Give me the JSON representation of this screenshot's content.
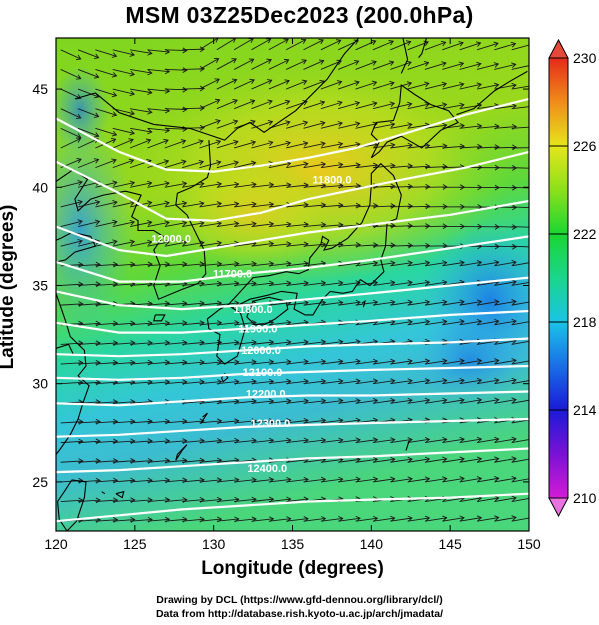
{
  "title": "MSM 03Z25Dec2023 (200.0hPa)",
  "xlabel": "Longitude (degrees)",
  "ylabel": "Latitude  (degrees)",
  "credits": {
    "line1": "Drawing by DCL (https://www.gfd-dennou.org/library/dcl/)",
    "line2": "Data from http://database.rish.kyoto-u.ac.jp/arch/jmadata/"
  },
  "map": {
    "lon_range": [
      120,
      150
    ],
    "lat_range": [
      22.5,
      47.6
    ],
    "x_ticks": [
      "120",
      "125",
      "130",
      "135",
      "140",
      "145",
      "150"
    ],
    "y_ticks": [
      "25",
      "30",
      "35",
      "40",
      "45"
    ],
    "colorbar": {
      "range": [
        210,
        230
      ],
      "labels": [
        "230",
        "226",
        "222",
        "218",
        "214",
        "210"
      ]
    },
    "contour_labels": [
      {
        "text": "11800.0",
        "lon": 137.5,
        "lat": 40.2
      },
      {
        "text": "12000.0",
        "lon": 127.3,
        "lat": 37.2
      },
      {
        "text": "11700.0",
        "lon": 131.2,
        "lat": 35.4
      },
      {
        "text": "11800.0",
        "lon": 132.5,
        "lat": 33.6
      },
      {
        "text": "11900.0",
        "lon": 132.8,
        "lat": 32.6
      },
      {
        "text": "12000.0",
        "lon": 133.0,
        "lat": 31.5
      },
      {
        "text": "12100.0",
        "lon": 133.1,
        "lat": 30.4
      },
      {
        "text": "12200.0",
        "lon": 133.3,
        "lat": 29.3
      },
      {
        "text": "12300.0",
        "lon": 133.6,
        "lat": 27.8
      },
      {
        "text": "12400.0",
        "lon": 133.4,
        "lat": 25.5
      }
    ]
  }
}
